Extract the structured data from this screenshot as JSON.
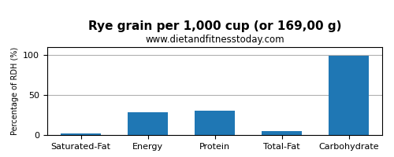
{
  "chart_data": {
    "type": "bar",
    "title": "Rye grain per 1,000 cup (or 169,00 g)",
    "subtitle": "www.dietandfitnesstoday.com",
    "ylabel": "Percentage of RDH (%)",
    "categories": [
      "Saturated-Fat",
      "Energy",
      "Protein",
      "Total-Fat",
      "Carbohydrate"
    ],
    "values": [
      2.0,
      28.0,
      30.5,
      5.0,
      99.0
    ],
    "ylim": [
      0,
      110
    ],
    "yticks": [
      0,
      50,
      100
    ],
    "grid": true
  }
}
